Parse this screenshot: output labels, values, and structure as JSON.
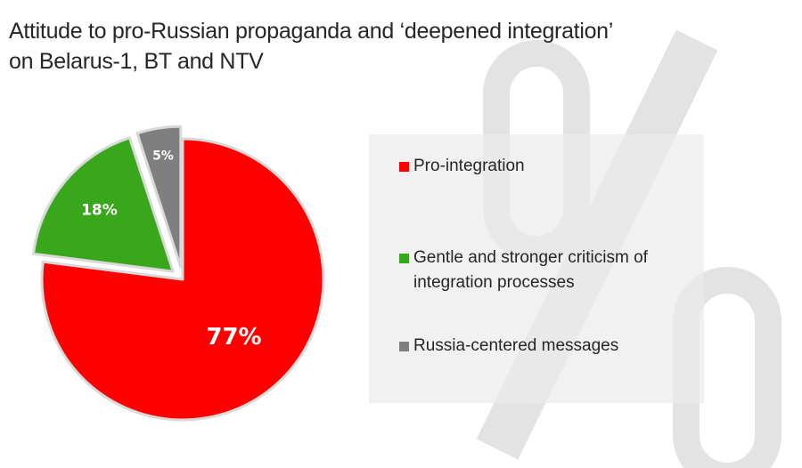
{
  "title_lines": [
    "Attitude to pro-Russian propaganda and ‘deepened integration’",
    "on Belarus-1, BT and NTV"
  ],
  "watermark": {
    "symbol": "%",
    "color": "#e3e3e3"
  },
  "chart_data": {
    "type": "pie",
    "title": "Attitude to pro-Russian propaganda and ‘deepened integration’ on Belarus-1, BT and NTV",
    "slices": [
      {
        "name": "Pro-integration",
        "value": 77,
        "label": "77%",
        "color": "#ff0000"
      },
      {
        "name": "Gentle and stronger criticism of integration processes",
        "value": 18,
        "label": "18%",
        "color": "#39a71b"
      },
      {
        "name": "Russia-centered messages",
        "value": 5,
        "label": "5%",
        "color": "#7f7f7f"
      }
    ],
    "legend_position": "right",
    "exploded_slices": [
      "Gentle and stronger criticism of integration processes",
      "Russia-centered messages"
    ]
  },
  "legend": [
    {
      "lines": [
        "Pro-integration"
      ],
      "color": "#ff0000"
    },
    {
      "lines": [
        "Gentle and stronger criticism of",
        "integration processes"
      ],
      "color": "#39a71b"
    },
    {
      "lines": [
        "Russia-centered messages"
      ],
      "color": "#7f7f7f"
    }
  ]
}
